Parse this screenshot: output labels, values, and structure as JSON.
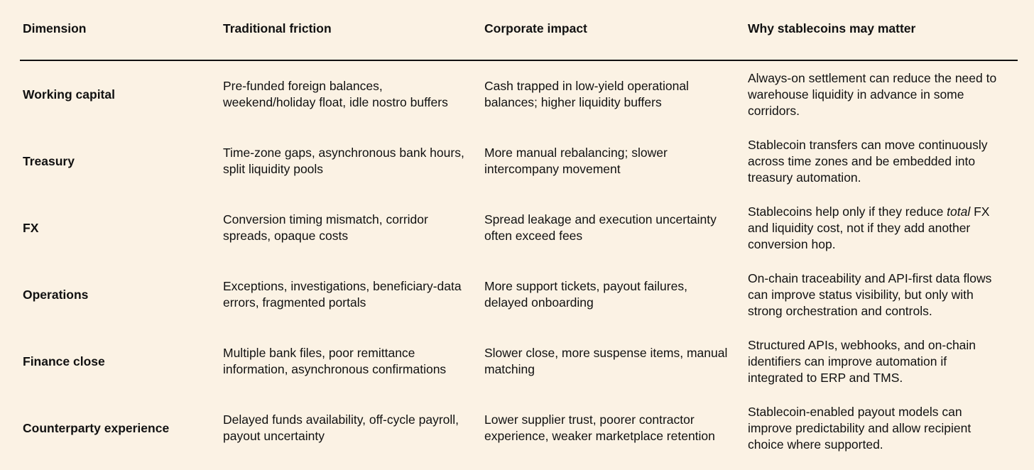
{
  "table": {
    "headers": [
      "Dimension",
      "Traditional friction",
      "Corporate impact",
      "Why stablecoins may matter"
    ],
    "rows": [
      {
        "dimension": "Working capital",
        "friction": [
          "Pre-funded foreign balances,",
          "weekend/holiday float, idle nostro buffers"
        ],
        "impact": [
          "Cash trapped in low-yield operational",
          "balances; higher liquidity buffers"
        ],
        "why": [
          "Always-on settlement can reduce the need to",
          "warehouse liquidity in advance in some",
          "corridors."
        ]
      },
      {
        "dimension": "Treasury",
        "friction": [
          "Time-zone gaps, asynchronous bank hours,",
          "split liquidity pools"
        ],
        "impact": [
          "More manual rebalancing; slower",
          "intercompany movement"
        ],
        "why": [
          "Stablecoin transfers can move continuously",
          "across time zones and be embedded into",
          "treasury automation."
        ]
      },
      {
        "dimension": "FX",
        "friction": [
          "Conversion timing mismatch, corridor",
          "spreads, opaque costs"
        ],
        "impact": [
          "Spread leakage and execution uncertainty",
          "often exceed fees"
        ],
        "why_line1_pre": "Stablecoins help only if they reduce ",
        "why_line1_em": "total",
        "why_line1_post": " FX",
        "why": [
          "",
          "and liquidity cost, not if they add another",
          "conversion hop."
        ]
      },
      {
        "dimension": "Operations",
        "friction": [
          "Exceptions, investigations, beneficiary-data",
          "errors, fragmented portals"
        ],
        "impact": [
          "More support tickets, payout failures,",
          "delayed onboarding"
        ],
        "why": [
          "On-chain traceability and API-first data flows",
          "can improve status visibility, but only with",
          "strong orchestration and controls."
        ]
      },
      {
        "dimension": "Finance close",
        "friction": [
          "Multiple bank files, poor remittance",
          "information, asynchronous confirmations"
        ],
        "impact": [
          "Slower close, more suspense items, manual",
          "matching"
        ],
        "why": [
          "Structured APIs, webhooks, and on-chain",
          "identifiers can improve automation if",
          "integrated to ERP and TMS."
        ]
      },
      {
        "dimension": "Counterparty experience",
        "friction": [
          "Delayed funds availability, off-cycle payroll,",
          "payout uncertainty"
        ],
        "impact": [
          "Lower supplier trust, poorer contractor",
          "experience, weaker marketplace retention"
        ],
        "why": [
          "Stablecoin-enabled payout models can",
          "improve predictability and allow recipient",
          "choice where supported."
        ]
      }
    ]
  }
}
